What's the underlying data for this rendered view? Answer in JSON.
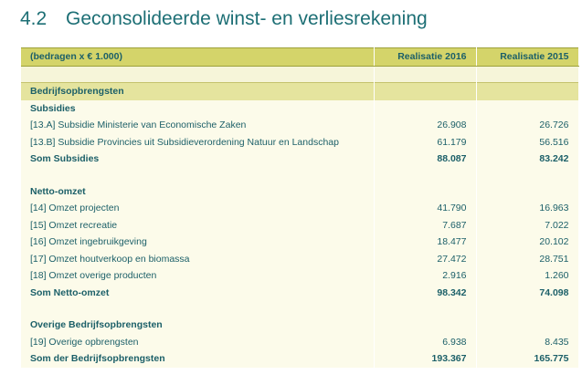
{
  "section": {
    "number": "4.2",
    "title": "Geconsolideerde winst- en verliesrekening"
  },
  "table": {
    "header": {
      "label": "(bedragen x € 1.000)",
      "col1": "Realisatie 2016",
      "col2": "Realisatie 2015"
    },
    "band_label": "Bedrijfsopbrengsten",
    "subsidies": {
      "heading": "Subsidies",
      "rows": [
        {
          "label": "[13.A] Subsidie Ministerie van Economische Zaken",
          "v2016": "26.908",
          "v2015": "26.726"
        },
        {
          "label": "[13.B] Subsidie Provincies uit Subsidieverordening Natuur en Landschap",
          "v2016": "61.179",
          "v2015": "56.516"
        }
      ],
      "total": {
        "label": "Som Subsidies",
        "v2016": "88.087",
        "v2015": "83.242"
      }
    },
    "netto": {
      "heading": "Netto-omzet",
      "rows": [
        {
          "label": "[14]  Omzet projecten",
          "v2016": "41.790",
          "v2015": "16.963"
        },
        {
          "label": "[15]  Omzet recreatie",
          "v2016": "7.687",
          "v2015": "7.022"
        },
        {
          "label": "[16]  Omzet ingebruikgeving",
          "v2016": "18.477",
          "v2015": "20.102"
        },
        {
          "label": "[17]  Omzet houtverkoop en biomassa",
          "v2016": "27.472",
          "v2015": "28.751"
        },
        {
          "label": "[18]  Omzet overige producten",
          "v2016": "2.916",
          "v2015": "1.260"
        }
      ],
      "total": {
        "label": "Som Netto-omzet",
        "v2016": "98.342",
        "v2015": "74.098"
      }
    },
    "overige": {
      "heading": "Overige  Bedrijfsopbrengsten",
      "rows": [
        {
          "label": "[19]  Overige opbrengsten",
          "v2016": "6.938",
          "v2015": "8.435"
        }
      ],
      "total": {
        "label": "Som der  Bedrijfsopbrengsten",
        "v2016": "193.367",
        "v2015": "165.775"
      }
    }
  }
}
